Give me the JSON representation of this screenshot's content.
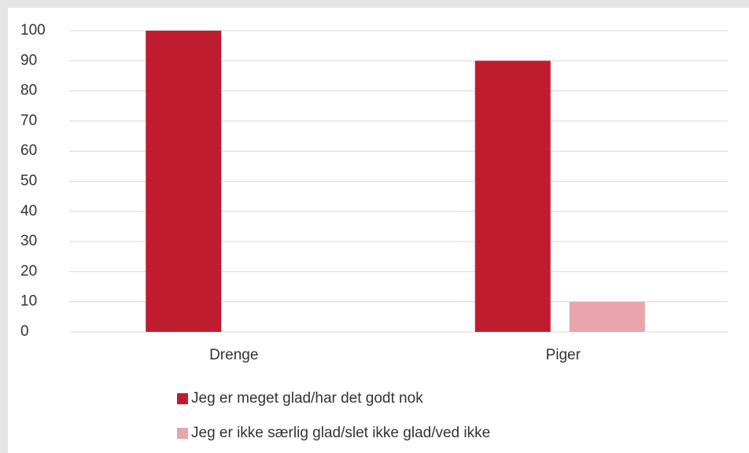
{
  "chart_data": {
    "type": "bar",
    "categories": [
      "Drenge",
      "Piger"
    ],
    "series": [
      {
        "name": "Jeg er meget glad/har det godt nok",
        "color": "#c01c30",
        "values": [
          100,
          90
        ]
      },
      {
        "name": "Jeg er ikke særlig glad/slet ikke glad/ved ikke",
        "color": "#e8a5ac",
        "values": [
          0,
          10
        ]
      }
    ],
    "ylim": [
      0,
      100
    ],
    "yticks": [
      0,
      10,
      20,
      30,
      40,
      50,
      60,
      70,
      80,
      90,
      100
    ],
    "grid": true,
    "legend": "bottom"
  }
}
